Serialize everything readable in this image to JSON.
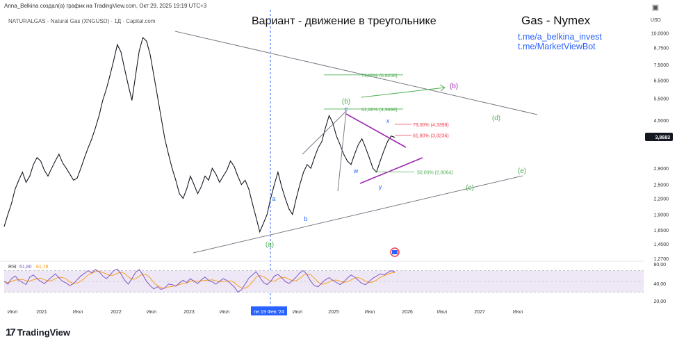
{
  "header": {
    "author_line": "Anna_Belkina создал(а) график на TradingView.com, Окт 29, 2025 19:19 UTC+3",
    "symbol_line": "NATURALGAS - Natural Gas (XNGUSD) · 1Д · Capital.com",
    "title": "Вариант - движение в треугольнике",
    "brand": "Gas - Nymex",
    "links": [
      "t.me/a_belkina_invest",
      "t.me/MarketViewBot"
    ]
  },
  "footer": {
    "logo_text": "TradingView",
    "logo_glyph": "17"
  },
  "chart_data": {
    "type": "line",
    "scale": "log",
    "currency": "USD",
    "price_ticks": [
      "10,0000",
      "8,7500",
      "7,5000",
      "6,5000",
      "5,5000",
      "4,5000",
      "3,8683",
      "2,9000",
      "2,5000",
      "2,2000",
      "1,9000",
      "1,6500",
      "1,4500",
      "1,2700"
    ],
    "last_price": "3,8683",
    "time_ticks": [
      "Июл",
      "2021",
      "Июл",
      "2022",
      "Июл",
      "2023",
      "Июл",
      "пн 19 Фев '24",
      "Июл",
      "2025",
      "Июл",
      "2026",
      "Июл",
      "2027",
      "Июл"
    ],
    "cursor_date": "пн 19 Фев '24",
    "price_series": [
      1.7,
      1.9,
      2.1,
      2.4,
      2.6,
      2.8,
      2.55,
      2.7,
      3.0,
      3.2,
      3.1,
      2.85,
      2.7,
      2.9,
      3.1,
      3.3,
      3.05,
      2.9,
      2.75,
      2.6,
      2.65,
      2.9,
      3.2,
      3.5,
      3.8,
      4.2,
      4.7,
      5.4,
      6.0,
      6.8,
      7.8,
      9.0,
      8.4,
      7.2,
      6.2,
      5.4,
      6.8,
      8.5,
      9.6,
      9.3,
      8.2,
      6.8,
      5.6,
      4.6,
      3.8,
      3.3,
      2.9,
      2.6,
      2.3,
      2.2,
      2.4,
      2.7,
      2.5,
      2.3,
      2.45,
      2.7,
      2.6,
      2.9,
      2.75,
      2.55,
      2.7,
      2.85,
      3.1,
      2.95,
      2.7,
      2.5,
      2.6,
      2.4,
      2.1,
      1.85,
      1.62,
      1.75,
      1.9,
      2.2,
      2.5,
      2.8,
      2.45,
      2.2,
      2.0,
      1.9,
      2.2,
      2.5,
      2.8,
      3.0,
      2.9,
      3.2,
      3.5,
      3.7,
      4.2,
      4.7,
      4.4,
      3.9,
      3.6,
      3.3,
      3.1,
      3.0,
      3.3,
      3.6,
      3.8,
      3.5,
      3.2,
      2.9,
      2.8,
      3.1,
      3.4,
      3.7,
      3.9,
      3.85
    ],
    "indicator": {
      "name": "RSI",
      "value1": "61,80",
      "value2": "61,78",
      "ticks": [
        "80,00",
        "40,00",
        "20,00"
      ],
      "series": [
        50,
        45,
        55,
        60,
        52,
        48,
        44,
        58,
        62,
        55,
        50,
        46,
        52,
        58,
        64,
        57,
        50,
        47,
        42,
        46,
        53,
        60,
        65,
        70,
        66,
        72,
        68,
        60,
        55,
        62,
        70,
        73,
        64,
        52,
        45,
        55,
        67,
        72,
        62,
        50,
        42,
        36,
        40,
        35,
        38,
        45,
        44,
        41,
        47,
        52,
        48,
        55,
        50,
        46,
        53,
        58,
        52,
        49,
        45,
        50,
        55,
        52,
        46,
        40,
        30,
        34,
        45,
        56,
        62,
        68,
        58,
        48,
        44,
        50,
        60,
        63,
        57,
        50,
        46,
        52,
        58,
        66,
        70,
        62,
        50,
        42,
        40,
        47,
        53,
        57,
        52,
        48,
        44,
        49,
        56,
        62,
        58,
        52,
        46,
        44,
        50,
        56,
        60,
        64,
        62,
        66,
        70,
        68
      ]
    },
    "annotations": {
      "fib_lines": [
        {
          "label": "79,00% (6,8208)",
          "price": 6.8208,
          "color": "#4caf50"
        },
        {
          "label": "61,80% (4,9899)",
          "price": 4.9899,
          "color": "#4caf50"
        },
        {
          "label": "79,00% (4,3398)",
          "price": 4.3398,
          "color": "#f23645"
        },
        {
          "label": "61,80% (3,9236)",
          "price": 3.9236,
          "color": "#f23645"
        },
        {
          "label": "50,00% (2,8064)",
          "price": 2.8064,
          "color": "#4caf50"
        }
      ],
      "wave_labels": [
        {
          "text": "(a)",
          "color": "#4caf50"
        },
        {
          "text": "a",
          "color": "#2962ff"
        },
        {
          "text": "b",
          "color": "#2962ff"
        },
        {
          "text": "(b)",
          "color": "#9c27b0"
        },
        {
          "text": "(b)",
          "color": "#4caf50"
        },
        {
          "text": "c",
          "color": "#2962ff"
        },
        {
          "text": "w",
          "color": "#2962ff"
        },
        {
          "text": "x",
          "color": "#2962ff"
        },
        {
          "text": "y",
          "color": "#2962ff"
        },
        {
          "text": "(c)",
          "color": "#4caf50"
        },
        {
          "text": "(d)",
          "color": "#4caf50"
        },
        {
          "text": "(e)",
          "color": "#4caf50"
        }
      ]
    },
    "colors": {
      "price": "#131722",
      "triangle": "#787b86",
      "cursor": "#2962ff",
      "last_price_tag": "#131722",
      "rsi": "#7e57c2",
      "rsi_ma": "#ff9800",
      "rsi_band": "#ede7f6",
      "purple_channel": "#9c27b0"
    }
  }
}
